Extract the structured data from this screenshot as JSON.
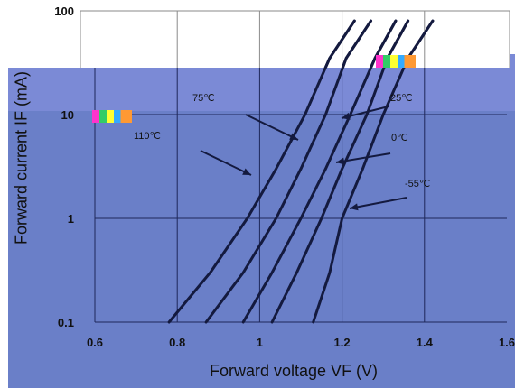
{
  "chart_data": {
    "type": "line",
    "xlabel": "Forward voltage VF (V)",
    "ylabel": "Forward current IF (mA)",
    "xlim": [
      0.6,
      1.6
    ],
    "ylim": [
      0.1,
      100
    ],
    "yscale": "log",
    "grid": true,
    "x_ticks": [
      "0.6",
      "0.8",
      "1",
      "1.2",
      "1.4",
      "1.6"
    ],
    "y_ticks": [
      "0.1",
      "1",
      "10",
      "100"
    ],
    "series": [
      {
        "name": "110℃",
        "points": [
          [
            0.78,
            0.1
          ],
          [
            0.88,
            0.3
          ],
          [
            0.97,
            1
          ],
          [
            1.04,
            3
          ],
          [
            1.11,
            10
          ],
          [
            1.17,
            35
          ],
          [
            1.23,
            80
          ]
        ]
      },
      {
        "name": "75℃",
        "points": [
          [
            0.87,
            0.1
          ],
          [
            0.96,
            0.3
          ],
          [
            1.04,
            1
          ],
          [
            1.1,
            3
          ],
          [
            1.16,
            10
          ],
          [
            1.21,
            35
          ],
          [
            1.27,
            80
          ]
        ]
      },
      {
        "name": "25℃",
        "points": [
          [
            0.96,
            0.1
          ],
          [
            1.03,
            0.3
          ],
          [
            1.1,
            1
          ],
          [
            1.16,
            3
          ],
          [
            1.22,
            10
          ],
          [
            1.28,
            35
          ],
          [
            1.33,
            80
          ]
        ]
      },
      {
        "name": "0℃",
        "points": [
          [
            1.03,
            0.1
          ],
          [
            1.09,
            0.3
          ],
          [
            1.15,
            1
          ],
          [
            1.2,
            3
          ],
          [
            1.26,
            10
          ],
          [
            1.31,
            35
          ],
          [
            1.36,
            80
          ]
        ]
      },
      {
        "name": "-55℃",
        "points": [
          [
            1.13,
            0.1
          ],
          [
            1.17,
            0.3
          ],
          [
            1.2,
            1
          ],
          [
            1.25,
            3
          ],
          [
            1.3,
            10
          ],
          [
            1.36,
            35
          ],
          [
            1.42,
            80
          ]
        ]
      }
    ],
    "annotations": [
      "110℃",
      "75℃",
      "25℃",
      "0℃",
      "-55℃"
    ]
  },
  "colors": {
    "curve": "#141a3f",
    "grid_dark": "#1e275a",
    "overlay_dark": "#6a7fc8",
    "overlay_light": "#7b8ad6"
  }
}
